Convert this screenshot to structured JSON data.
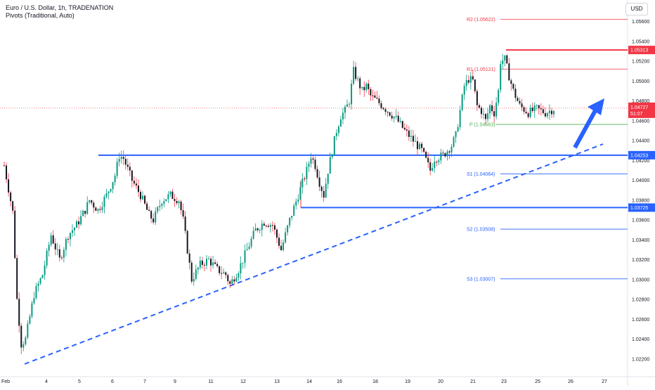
{
  "header": {
    "title": "Euro / U.S. Dollar, 1h, TRADENATION",
    "indicator": "Pivots (Traditional, Auto)"
  },
  "currency_button": "USD",
  "chart_data": {
    "type": "candlestick",
    "y_ticks": [
      1.056,
      1.054,
      1.052,
      1.05,
      1.048,
      1.046,
      1.044,
      1.042,
      1.04,
      1.038,
      1.036,
      1.034,
      1.032,
      1.03,
      1.028,
      1.026,
      1.024,
      1.022
    ],
    "y_tick_labels": [
      "1.05600",
      "1.05400",
      "1.05200",
      "1.05000",
      "1.04800",
      "1.04600",
      "1.04400",
      "1.04200",
      "1.04000",
      "1.03800",
      "1.03600",
      "1.03400",
      "1.03200",
      "1.03000",
      "1.02800",
      "1.02600",
      "1.02400",
      "1.02200"
    ],
    "ylim": [
      1.0205,
      1.0576
    ],
    "x_tick_labels": [
      "Feb",
      "4",
      "5",
      "6",
      "7",
      "9",
      "11",
      "12",
      "13",
      "14",
      "16",
      "18",
      "19",
      "20",
      "21",
      "23",
      "25",
      "26",
      "27"
    ],
    "current_price": {
      "label": "1.04727",
      "countdown": "51:07",
      "value": 1.04727
    },
    "pivots": [
      {
        "name": "R2",
        "label": "R2 (1.05622)",
        "value": 1.05622,
        "color": "#f23645"
      },
      {
        "name": "R1",
        "label": "R1 (1.05121)",
        "value": 1.05121,
        "color": "#f23645"
      },
      {
        "name": "P",
        "label": "P (1.04563)",
        "value": 1.04563,
        "color": "#4caf50"
      },
      {
        "name": "S1",
        "label": "S1 (1.04064)",
        "value": 1.04064,
        "color": "#2962ff"
      },
      {
        "name": "S2",
        "label": "S2 (1.03508)",
        "value": 1.03508,
        "color": "#2962ff"
      },
      {
        "name": "S3",
        "label": "S3 (1.03007)",
        "value": 1.03007,
        "color": "#2962ff"
      }
    ],
    "levels": [
      {
        "label": "1.05313",
        "value": 1.05313,
        "color": "#f23645"
      },
      {
        "label": "1.04253",
        "value": 1.04253,
        "color": "#2962ff"
      },
      {
        "label": "1.03725",
        "value": 1.03725,
        "color": "#2962ff"
      }
    ],
    "trendline": {
      "style": "dashed",
      "color": "#2962ff"
    },
    "arrow": {
      "direction": "up",
      "color": "#2962ff"
    },
    "path": [
      [
        0,
        1.0415
      ],
      [
        4,
        1.0368
      ],
      [
        6,
        1.028
      ],
      [
        8,
        1.0235
      ],
      [
        10,
        1.024
      ],
      [
        14,
        1.0285
      ],
      [
        18,
        1.0305
      ],
      [
        22,
        1.0345
      ],
      [
        26,
        1.032
      ],
      [
        30,
        1.0345
      ],
      [
        34,
        1.0355
      ],
      [
        38,
        1.037
      ],
      [
        40,
        1.038
      ],
      [
        44,
        1.037
      ],
      [
        48,
        1.0385
      ],
      [
        52,
        1.0405
      ],
      [
        54,
        1.0425
      ],
      [
        56,
        1.0422
      ],
      [
        60,
        1.04
      ],
      [
        64,
        1.0385
      ],
      [
        68,
        1.0365
      ],
      [
        70,
        1.036
      ],
      [
        74,
        1.038
      ],
      [
        78,
        1.0385
      ],
      [
        82,
        1.038
      ],
      [
        84,
        1.036
      ],
      [
        86,
        1.033
      ],
      [
        88,
        1.03
      ],
      [
        92,
        1.0315
      ],
      [
        96,
        1.032
      ],
      [
        100,
        1.031
      ],
      [
        104,
        1.0305
      ],
      [
        106,
        1.0295
      ],
      [
        110,
        1.031
      ],
      [
        114,
        1.033
      ],
      [
        118,
        1.035
      ],
      [
        122,
        1.0358
      ],
      [
        126,
        1.0355
      ],
      [
        130,
        1.033
      ],
      [
        134,
        1.036
      ],
      [
        138,
        1.0385
      ],
      [
        142,
        1.041
      ],
      [
        144,
        1.0425
      ],
      [
        146,
        1.0415
      ],
      [
        148,
        1.0398
      ],
      [
        150,
        1.0385
      ],
      [
        152,
        1.041
      ],
      [
        154,
        1.043
      ],
      [
        156,
        1.045
      ],
      [
        158,
        1.0465
      ],
      [
        160,
        1.047
      ],
      [
        162,
        1.048
      ],
      [
        164,
        1.051
      ],
      [
        166,
        1.05
      ],
      [
        168,
        1.049
      ],
      [
        170,
        1.0495
      ],
      [
        172,
        1.0485
      ],
      [
        176,
        1.0478
      ],
      [
        180,
        1.047
      ],
      [
        184,
        1.0462
      ],
      [
        188,
        1.045
      ],
      [
        192,
        1.044
      ],
      [
        196,
        1.043
      ],
      [
        198,
        1.042
      ],
      [
        200,
        1.041
      ],
      [
        202,
        1.0422
      ],
      [
        206,
        1.0425
      ],
      [
        210,
        1.0435
      ],
      [
        212,
        1.0445
      ],
      [
        214,
        1.047
      ],
      [
        216,
        1.0495
      ],
      [
        218,
        1.0502
      ],
      [
        220,
        1.05
      ],
      [
        222,
        1.0475
      ],
      [
        224,
        1.047
      ],
      [
        226,
        1.046
      ],
      [
        228,
        1.0475
      ],
      [
        230,
        1.0468
      ],
      [
        232,
        1.049
      ],
      [
        233,
        1.052
      ],
      [
        235,
        1.0522
      ],
      [
        237,
        1.0505
      ],
      [
        239,
        1.049
      ],
      [
        242,
        1.0475
      ],
      [
        246,
        1.0468
      ],
      [
        250,
        1.0472
      ],
      [
        254,
        1.0468
      ],
      [
        258,
        1.0472
      ]
    ],
    "grid": false
  }
}
